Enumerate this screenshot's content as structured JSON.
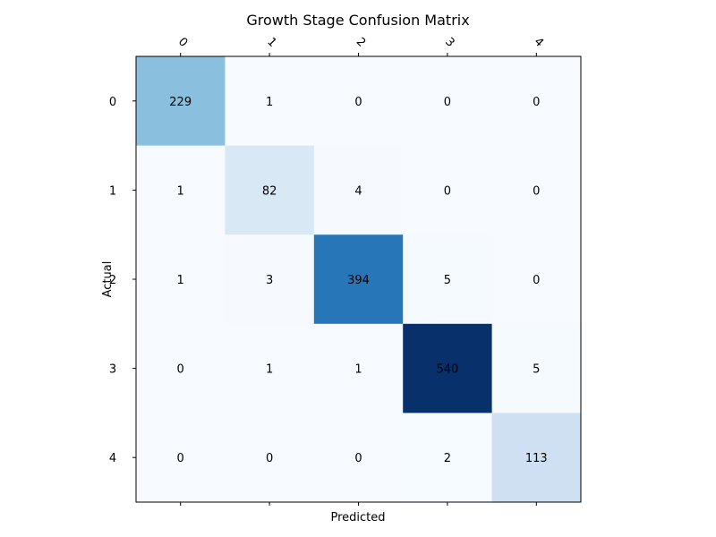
{
  "chart_data": {
    "type": "heatmap",
    "title": "Growth Stage Confusion Matrix",
    "xlabel": "Predicted",
    "ylabel": "Actual",
    "x_categories": [
      "0",
      "1",
      "2",
      "3",
      "4"
    ],
    "y_categories": [
      "0",
      "1",
      "2",
      "3",
      "4"
    ],
    "x_tick_position": "top-and-bottom",
    "x_tick_label_rotation": -45,
    "colormap": "Blues",
    "value_range": [
      0,
      540
    ],
    "matrix": [
      [
        229,
        1,
        0,
        0,
        0
      ],
      [
        1,
        82,
        4,
        0,
        0
      ],
      [
        1,
        3,
        394,
        5,
        0
      ],
      [
        0,
        1,
        1,
        540,
        5
      ],
      [
        0,
        0,
        0,
        2,
        113
      ]
    ],
    "grid": false,
    "colorbar": false
  }
}
